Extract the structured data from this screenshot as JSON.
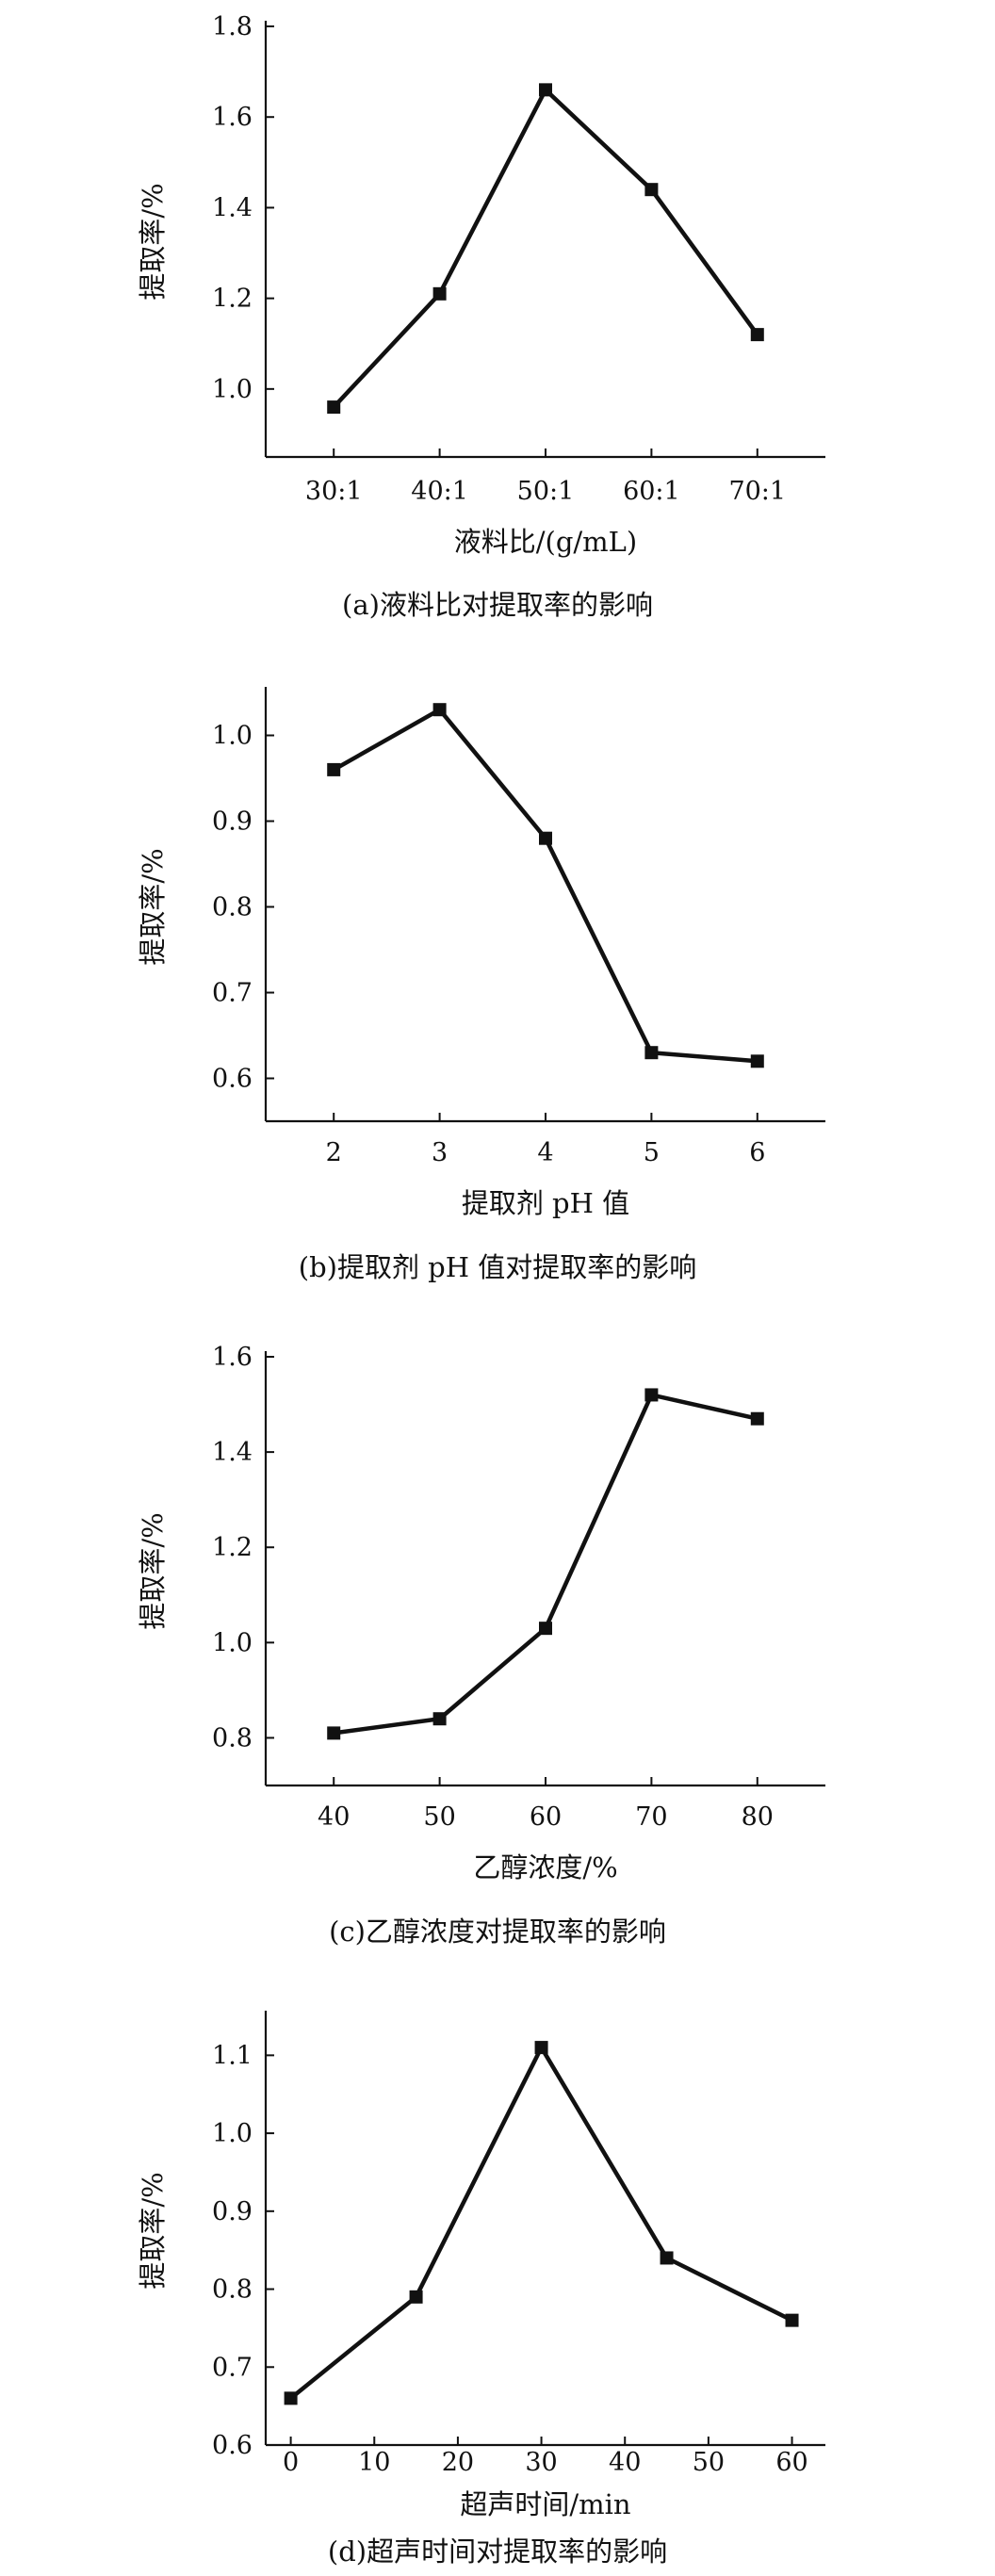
{
  "chart_data": [
    {
      "type": "line",
      "categories": [
        "30:1",
        "40:1",
        "50:1",
        "60:1",
        "70:1"
      ],
      "values": [
        0.96,
        1.21,
        1.66,
        1.44,
        1.12
      ],
      "ylim": [
        0.85,
        1.8
      ],
      "yticks": [
        "1.0",
        "1.2",
        "1.4",
        "1.6",
        "1.8"
      ],
      "xlabel": "液料比/(g/mL)",
      "ylabel": "提取率/%",
      "caption": "(a)液料比对提取率的影响",
      "marker": "square",
      "grid": false
    },
    {
      "type": "line",
      "categories": [
        "2",
        "3",
        "4",
        "5",
        "6"
      ],
      "values": [
        0.96,
        1.03,
        0.88,
        0.63,
        0.62
      ],
      "ylim": [
        0.55,
        1.05
      ],
      "yticks": [
        "0.6",
        "0.7",
        "0.8",
        "0.9",
        "1.0"
      ],
      "xlabel": "提取剂 pH 值",
      "ylabel": "提取率/%",
      "caption": "(b)提取剂 pH 值对提取率的影响",
      "marker": "square",
      "grid": false
    },
    {
      "type": "line",
      "categories": [
        "40",
        "50",
        "60",
        "70",
        "80"
      ],
      "values": [
        0.81,
        0.84,
        1.03,
        1.52,
        1.47
      ],
      "ylim": [
        0.7,
        1.6
      ],
      "yticks": [
        "0.8",
        "1.0",
        "1.2",
        "1.4",
        "1.6"
      ],
      "xlabel": "乙醇浓度/%",
      "ylabel": "提取率/%",
      "caption": "(c)乙醇浓度对提取率的影响",
      "marker": "square",
      "grid": false
    },
    {
      "type": "line",
      "x": [
        0,
        15,
        30,
        45,
        60
      ],
      "values": [
        0.66,
        0.79,
        1.11,
        0.84,
        0.76
      ],
      "xlim": [
        -3,
        64
      ],
      "xticks": [
        "0",
        "10",
        "20",
        "30",
        "40",
        "50",
        "60"
      ],
      "ylim": [
        0.6,
        1.15
      ],
      "yticks": [
        "0.6",
        "0.7",
        "0.8",
        "0.9",
        "1.0",
        "1.1"
      ],
      "xlabel": "超声时间/min",
      "ylabel": "提取率/%",
      "caption": "(d)超声时间对提取率的影响",
      "marker": "square",
      "grid": false
    }
  ]
}
